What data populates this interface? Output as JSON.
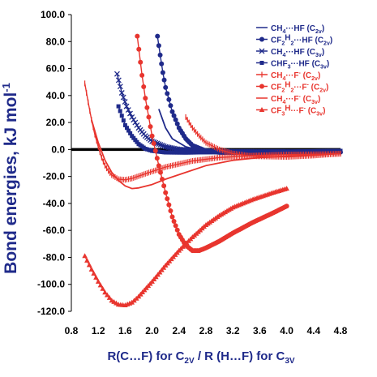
{
  "chart_data": {
    "type": "line",
    "xlabel": "R(C…F) for C2v / R (H…F) for C3v",
    "ylabel": "Bond energies, kJ mol-1",
    "xlim": [
      0.8,
      4.8
    ],
    "ylim": [
      -120,
      100
    ],
    "x_ticks": [
      "0.8",
      "1.2",
      "1.6",
      "2.0",
      "2.4",
      "2.8",
      "3.2",
      "3.6",
      "4.0",
      "4.4",
      "4.8"
    ],
    "y_ticks": [
      "100.0",
      "80.0",
      "60.0",
      "40.0",
      "20.0",
      "0.0",
      "-20.0",
      "-40.0",
      "-60.0",
      "-80.0",
      "-100.0",
      "-120.0"
    ],
    "zero_line": true,
    "legend_position": "top-right",
    "series": [
      {
        "name": "CH4···HF (C2v)",
        "color": "#1f2a8a",
        "marker": "line",
        "points": [
          [
            2.1,
            30
          ],
          [
            2.2,
            16
          ],
          [
            2.3,
            8
          ],
          [
            2.5,
            2
          ],
          [
            2.7,
            -0.5
          ],
          [
            3.0,
            -1.5
          ],
          [
            3.5,
            -1.8
          ],
          [
            4.0,
            -1.8
          ],
          [
            4.5,
            -1.8
          ],
          [
            4.8,
            -1.8
          ]
        ]
      },
      {
        "name": "CF2H2···HF (C2v)",
        "color": "#1f2a8a",
        "marker": "circle",
        "points": [
          [
            2.08,
            84
          ],
          [
            2.12,
            70
          ],
          [
            2.16,
            57
          ],
          [
            2.2,
            46
          ],
          [
            2.3,
            28
          ],
          [
            2.4,
            16
          ],
          [
            2.5,
            8
          ],
          [
            2.6,
            3
          ],
          [
            2.8,
            -1
          ],
          [
            3.0,
            -2.2
          ],
          [
            3.5,
            -2.6
          ],
          [
            4.0,
            -2.4
          ],
          [
            4.5,
            -2.2
          ],
          [
            4.8,
            -2
          ]
        ]
      },
      {
        "name": "CH4···HF (C3v)",
        "color": "#1f2a8a",
        "marker": "x",
        "points": [
          [
            1.48,
            56
          ],
          [
            1.55,
            42
          ],
          [
            1.62,
            32
          ],
          [
            1.7,
            24
          ],
          [
            1.8,
            16
          ],
          [
            1.9,
            10
          ],
          [
            2.0,
            6
          ],
          [
            2.2,
            2
          ],
          [
            2.4,
            0
          ],
          [
            2.8,
            -1.2
          ],
          [
            3.2,
            -1.6
          ],
          [
            3.6,
            -1.7
          ],
          [
            4.0,
            -1.7
          ]
        ]
      },
      {
        "name": "CHF3···HF (C3v)",
        "color": "#1f2a8a",
        "marker": "square",
        "points": [
          [
            1.5,
            32
          ],
          [
            1.55,
            25
          ],
          [
            1.6,
            18
          ],
          [
            1.7,
            10
          ],
          [
            1.8,
            4
          ],
          [
            1.9,
            0.5
          ],
          [
            2.0,
            -1
          ],
          [
            2.2,
            -2.2
          ],
          [
            2.5,
            -2.3
          ],
          [
            3.0,
            -2
          ],
          [
            3.5,
            -1.7
          ],
          [
            4.0,
            -1.5
          ],
          [
            4.5,
            -1.2
          ],
          [
            4.8,
            -1
          ]
        ]
      },
      {
        "name": "CH4···F- (C2v)",
        "color": "#e8352e",
        "marker": "plus",
        "points": [
          [
            2.5,
            24
          ],
          [
            2.6,
            16
          ],
          [
            2.7,
            10
          ],
          [
            2.8,
            5
          ],
          [
            3.0,
            0
          ],
          [
            3.2,
            -3
          ],
          [
            3.5,
            -5
          ],
          [
            4.0,
            -5.5
          ],
          [
            4.4,
            -4.5
          ],
          [
            4.8,
            -3
          ]
        ]
      },
      {
        "name": "CF2H2···F- (C2v)",
        "color": "#e8352e",
        "marker": "circle",
        "points": [
          [
            1.78,
            84
          ],
          [
            1.85,
            55
          ],
          [
            1.9,
            38
          ],
          [
            2.0,
            10
          ],
          [
            2.1,
            -12
          ],
          [
            2.2,
            -32
          ],
          [
            2.3,
            -50
          ],
          [
            2.4,
            -63
          ],
          [
            2.5,
            -71
          ],
          [
            2.6,
            -75
          ],
          [
            2.7,
            -75
          ],
          [
            2.8,
            -73
          ],
          [
            3.0,
            -68
          ],
          [
            3.2,
            -62
          ],
          [
            3.5,
            -54
          ],
          [
            3.8,
            -47
          ],
          [
            4.0,
            -42
          ]
        ]
      },
      {
        "name": "CH4···F- (C3v)",
        "color": "#e8352e",
        "marker": "line",
        "points": [
          [
            1.1,
            22
          ],
          [
            1.2,
            5
          ],
          [
            1.3,
            -8
          ],
          [
            1.4,
            -17
          ],
          [
            1.5,
            -23
          ],
          [
            1.6,
            -27
          ],
          [
            1.7,
            -29
          ],
          [
            1.8,
            -28.5
          ],
          [
            2.0,
            -26
          ],
          [
            2.2,
            -22
          ],
          [
            2.5,
            -17
          ],
          [
            2.8,
            -12
          ],
          [
            3.2,
            -8
          ],
          [
            3.6,
            -6
          ],
          [
            4.0,
            -5
          ],
          [
            4.4,
            -4
          ],
          [
            4.8,
            -3
          ]
        ]
      },
      {
        "name": "CF3H···F- (C3v)",
        "color": "#e8352e",
        "marker": "triangle",
        "points": [
          [
            1.0,
            -79
          ],
          [
            1.1,
            -89
          ],
          [
            1.2,
            -98
          ],
          [
            1.3,
            -106
          ],
          [
            1.4,
            -112
          ],
          [
            1.5,
            -115
          ],
          [
            1.6,
            -115.5
          ],
          [
            1.7,
            -113.5
          ],
          [
            1.8,
            -109
          ],
          [
            2.0,
            -98
          ],
          [
            2.2,
            -86
          ],
          [
            2.4,
            -75
          ],
          [
            2.6,
            -65
          ],
          [
            2.8,
            -56
          ],
          [
            3.0,
            -49
          ],
          [
            3.2,
            -43
          ],
          [
            3.5,
            -37
          ],
          [
            3.8,
            -32
          ],
          [
            4.0,
            -29
          ]
        ]
      },
      {
        "name": "",
        "color": "#e8352e",
        "marker": "plus",
        "legend": false,
        "points": [
          [
            1.0,
            49
          ],
          [
            1.05,
            35
          ],
          [
            1.1,
            22
          ],
          [
            1.15,
            11
          ],
          [
            1.2,
            2
          ],
          [
            1.25,
            -6
          ],
          [
            1.3,
            -12
          ],
          [
            1.35,
            -16
          ],
          [
            1.4,
            -19
          ],
          [
            1.5,
            -22
          ],
          [
            1.6,
            -22.5
          ],
          [
            1.7,
            -21.5
          ],
          [
            1.9,
            -18
          ],
          [
            2.2,
            -13
          ],
          [
            2.6,
            -8.5
          ],
          [
            3.0,
            -6
          ],
          [
            3.5,
            -4.5
          ],
          [
            4.0,
            -3.8
          ],
          [
            4.5,
            -3.5
          ],
          [
            4.8,
            -3.2
          ]
        ]
      }
    ]
  },
  "legend": [
    {
      "label_main": "CH",
      "sub1": "4",
      "label_mid": "···HF (C",
      "sub2": "2v",
      "label_end": ")",
      "color": "#1f2a8a"
    },
    {
      "label_main": "CF",
      "sub1": "2",
      "mid0": "H",
      "sub0": "2",
      "label_mid": "···HF (C",
      "sub2": "2v",
      "label_end": ")",
      "color": "#1f2a8a"
    },
    {
      "label_main": "CH",
      "sub1": "4",
      "label_mid": "···HF (C",
      "sub2": "3v",
      "label_end": ")",
      "color": "#1f2a8a"
    },
    {
      "label_main": "CHF",
      "sub1": "3",
      "label_mid": "···HF (C",
      "sub2": "3v",
      "label_end": ")",
      "color": "#1f2a8a"
    },
    {
      "label_main": "CH",
      "sub1": "4",
      "label_mid": "···F",
      "sup": "-",
      "label_mid2": " (C",
      "sub2": "2v",
      "label_end": ")",
      "color": "#e8352e"
    },
    {
      "label_main": "CF",
      "sub1": "2",
      "mid0": "H",
      "sub0": "2",
      "label_mid": "···F",
      "sup": "-",
      "label_mid2": " (C",
      "sub2": "2v",
      "label_end": ")",
      "color": "#e8352e"
    },
    {
      "label_main": "CH",
      "sub1": "4",
      "label_mid": "···F",
      "sup": "-",
      "label_mid2": " (C",
      "sub2": "3v",
      "label_end": ")",
      "color": "#e8352e"
    },
    {
      "label_main": "CF",
      "sub1": "3",
      "mid0": "H",
      "label_mid": "···F",
      "sup": "-",
      "label_mid2": " (C",
      "sub2": "3v",
      "label_end": ")",
      "color": "#e8352e"
    }
  ],
  "axis_text": {
    "x_prefix": "R(C…F) for C",
    "x_sub1": "2V",
    "x_middle": " / R (H…F) for C",
    "x_sub2": "3V",
    "y_main": "Bond energies, kJ mol",
    "y_sup": "-1"
  }
}
